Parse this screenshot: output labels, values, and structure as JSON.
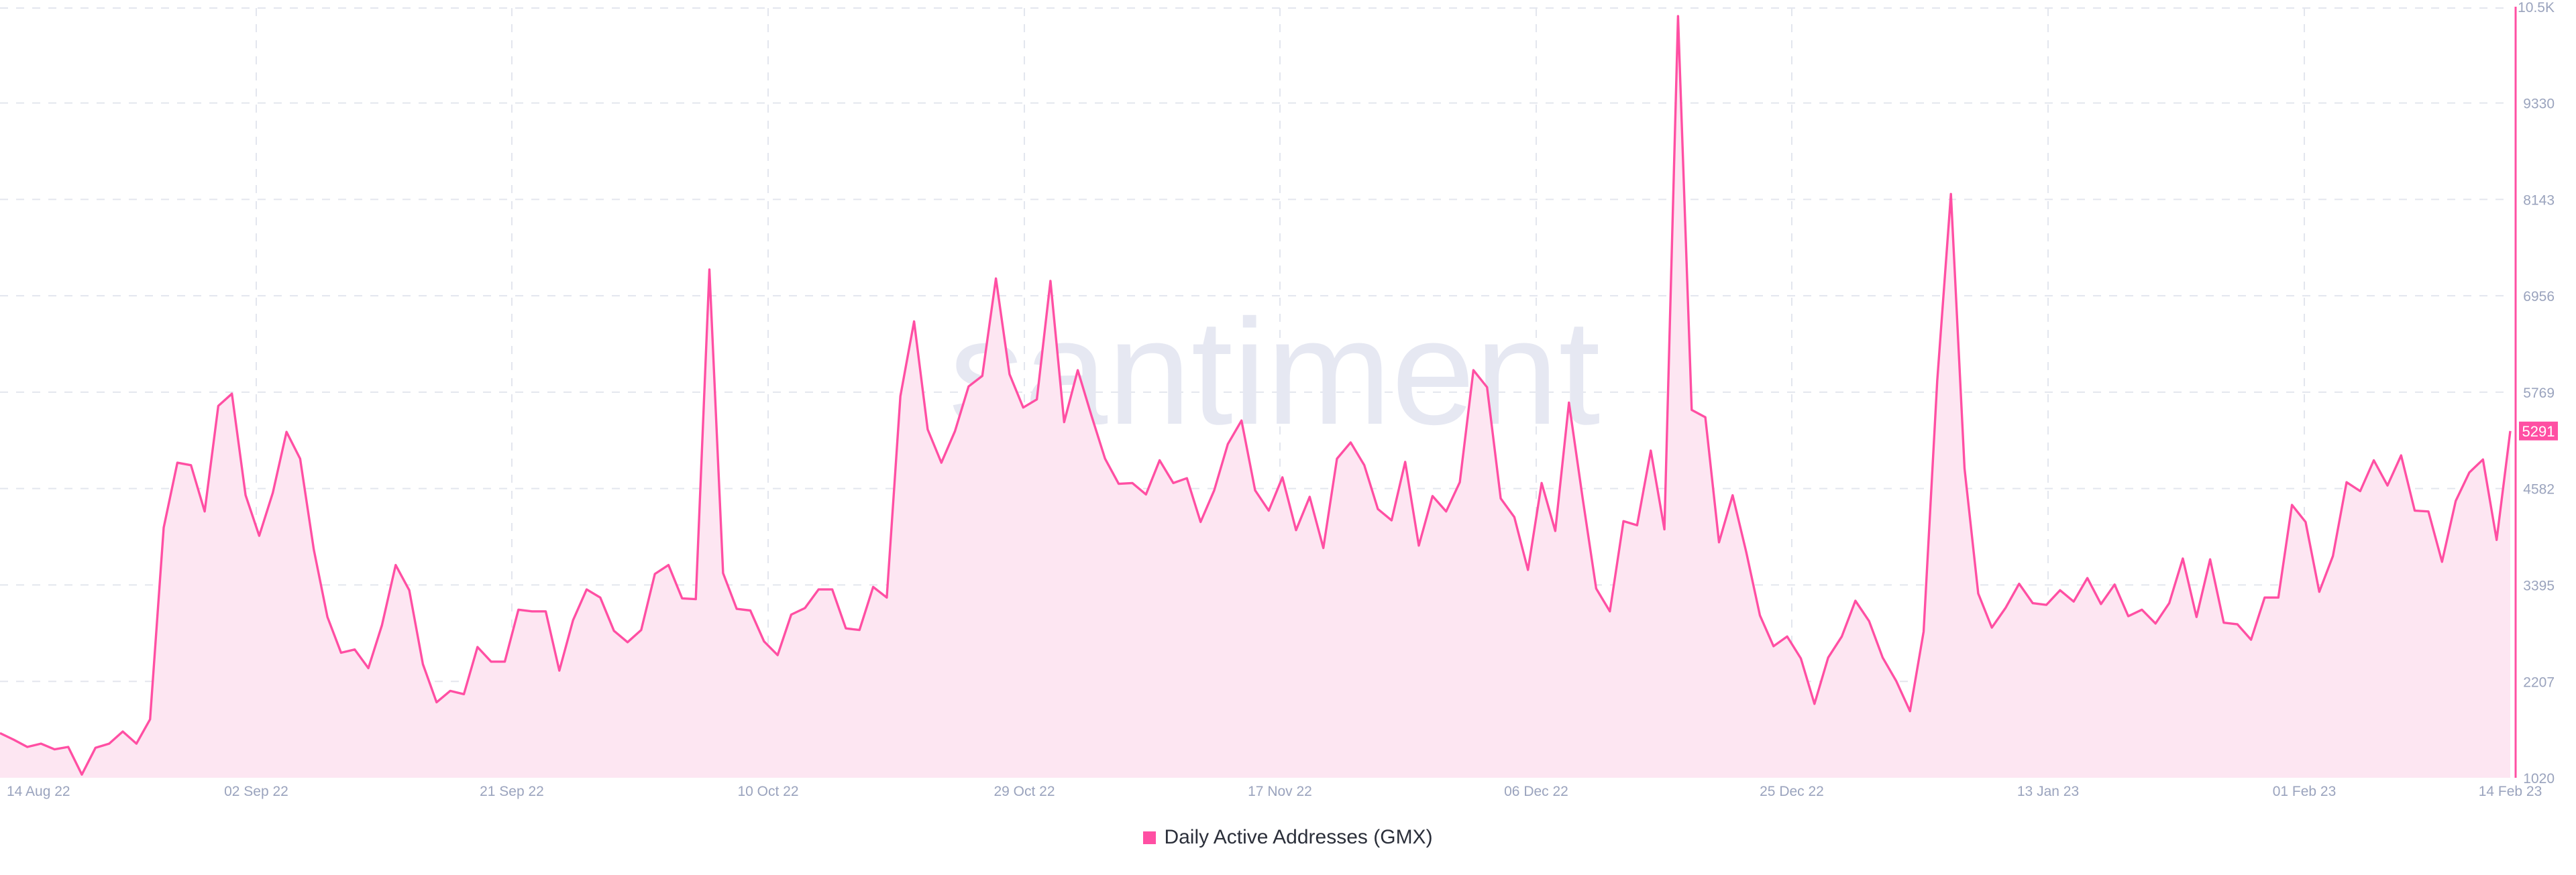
{
  "colors": {
    "series": "#ff4fa3",
    "fill": "#fde6f2",
    "badge_bg": "#ff4fa3",
    "badge_text": "#ffffff",
    "watermark": "#e6e8f2"
  },
  "watermark": "santiment",
  "legend": {
    "label": "Daily Active Addresses (GMX)"
  },
  "chart_data": {
    "type": "area",
    "xlabel": "",
    "ylabel": "",
    "ylim": [
      1020,
      10500
    ],
    "grid": true,
    "legend_position": "bottom-center",
    "y_ticks": [
      "1020",
      "2207",
      "3395",
      "4582",
      "5769",
      "6956",
      "8143",
      "9330",
      "10.5K"
    ],
    "y_tick_values": [
      1020,
      2207,
      3395,
      4582,
      5769,
      6956,
      8143,
      9330,
      10500
    ],
    "x_ticks": [
      "14 Aug 22",
      "02 Sep 22",
      "21 Sep 22",
      "10 Oct 22",
      "29 Oct 22",
      "17 Nov 22",
      "06 Dec 22",
      "25 Dec 22",
      "13 Jan 23",
      "01 Feb 23",
      "14 Feb 23"
    ],
    "x_start": "2022-08-14",
    "x_end": "2023-02-14",
    "last_value_label": "5291",
    "series": [
      {
        "name": "Daily Active Addresses (GMX)",
        "values": [
          1570,
          1490,
          1400,
          1440,
          1370,
          1400,
          1060,
          1390,
          1440,
          1590,
          1440,
          1740,
          4100,
          4900,
          4870,
          4300,
          5600,
          5750,
          4500,
          4000,
          4530,
          5280,
          4950,
          3830,
          3000,
          2560,
          2600,
          2370,
          2900,
          3640,
          3330,
          2420,
          1950,
          2090,
          2050,
          2630,
          2450,
          2450,
          3090,
          3070,
          3070,
          2340,
          2960,
          3340,
          3240,
          2830,
          2690,
          2840,
          3530,
          3640,
          3230,
          3220,
          7280,
          3540,
          3100,
          3080,
          2700,
          2530,
          3030,
          3110,
          3340,
          3340,
          2860,
          2840,
          3370,
          3240,
          5720,
          6640,
          5310,
          4900,
          5290,
          5840,
          5970,
          7170,
          5990,
          5580,
          5680,
          7140,
          5400,
          6040,
          5480,
          4950,
          4640,
          4650,
          4510,
          4930,
          4650,
          4710,
          4170,
          4560,
          5130,
          5420,
          4560,
          4310,
          4720,
          4070,
          4480,
          3850,
          4950,
          5150,
          4870,
          4330,
          4190,
          4910,
          3880,
          4490,
          4300,
          4660,
          6040,
          5830,
          4460,
          4230,
          3580,
          4650,
          4060,
          5640,
          4470,
          3350,
          3070,
          4180,
          4130,
          5050,
          4080,
          10400,
          5550,
          5460,
          3920,
          4500,
          3800,
          3020,
          2640,
          2760,
          2490,
          1930,
          2500,
          2760,
          3200,
          2950,
          2500,
          2210,
          1840,
          2820,
          5910,
          8210,
          4830,
          3290,
          2870,
          3110,
          3410,
          3170,
          3150,
          3330,
          3190,
          3480,
          3160,
          3400,
          3010,
          3090,
          2920,
          3170,
          3720,
          3000,
          3710,
          2930,
          2910,
          2720,
          3240,
          3240,
          4380,
          4170,
          3310,
          3750,
          4660,
          4550,
          4930,
          4620,
          4990,
          4310,
          4300,
          3680,
          4430,
          4780,
          4940,
          3950,
          5291
        ]
      }
    ]
  }
}
